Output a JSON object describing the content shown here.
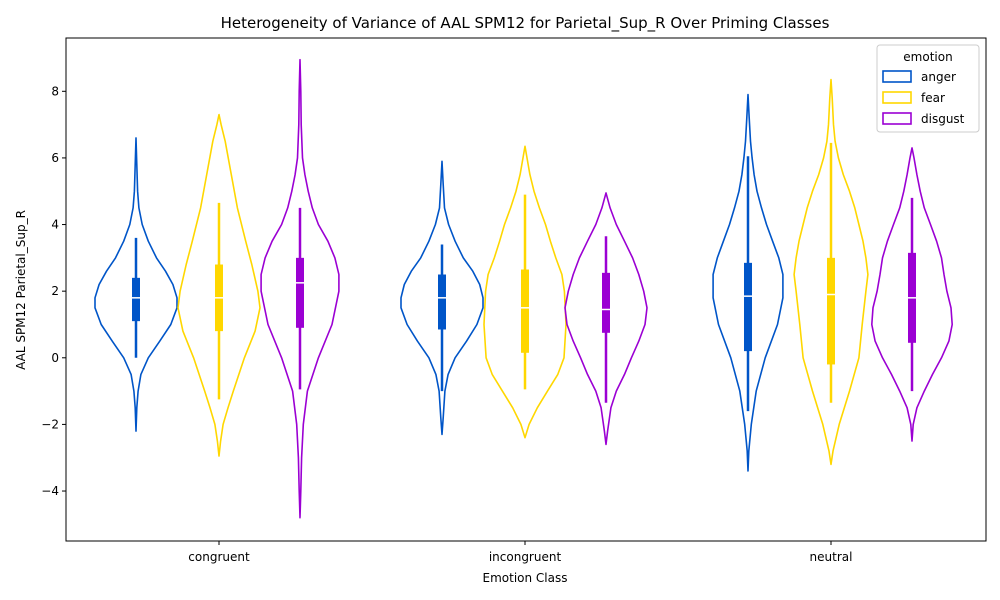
{
  "chart_data": {
    "type": "violin",
    "title": "Heterogeneity of Variance of AAL SPM12 for Parietal_Sup_R Over Priming Classes",
    "xlabel": "Emotion Class",
    "ylabel": "AAL SPM12 Parietal_Sup_R",
    "categories": [
      "congruent",
      "incongruent",
      "neutral"
    ],
    "ylim": [
      -5.5,
      9.6
    ],
    "yticks": [
      -4,
      -2,
      0,
      2,
      4,
      6,
      8
    ],
    "grid": false,
    "legend": {
      "title": "emotion",
      "placement": "top-right"
    },
    "series": [
      {
        "name": "anger",
        "color": "#0055c8",
        "violins": [
          {
            "min": -2.2,
            "max": 6.6,
            "q1": 1.1,
            "median": 1.8,
            "q3": 2.4,
            "whisker_low": 0.0,
            "whisker_high": 3.6,
            "density": [
              [
                -2.2,
                0.0
              ],
              [
                -1.5,
                0.02
              ],
              [
                -1.0,
                0.05
              ],
              [
                -0.5,
                0.12
              ],
              [
                0.0,
                0.3
              ],
              [
                0.5,
                0.58
              ],
              [
                1.0,
                0.85
              ],
              [
                1.5,
                1.0
              ],
              [
                1.8,
                1.0
              ],
              [
                2.2,
                0.9
              ],
              [
                2.6,
                0.72
              ],
              [
                3.0,
                0.5
              ],
              [
                3.5,
                0.3
              ],
              [
                4.0,
                0.15
              ],
              [
                4.5,
                0.07
              ],
              [
                5.0,
                0.04
              ],
              [
                5.8,
                0.02
              ],
              [
                6.6,
                0.0
              ]
            ]
          },
          {
            "min": -2.3,
            "max": 5.9,
            "q1": 0.85,
            "median": 1.8,
            "q3": 2.5,
            "whisker_low": -1.0,
            "whisker_high": 3.4,
            "density": [
              [
                -2.3,
                0.0
              ],
              [
                -1.8,
                0.03
              ],
              [
                -1.0,
                0.07
              ],
              [
                -0.5,
                0.15
              ],
              [
                0.0,
                0.32
              ],
              [
                0.5,
                0.6
              ],
              [
                1.0,
                0.85
              ],
              [
                1.5,
                1.0
              ],
              [
                1.8,
                1.0
              ],
              [
                2.2,
                0.92
              ],
              [
                2.6,
                0.75
              ],
              [
                3.0,
                0.52
              ],
              [
                3.5,
                0.32
              ],
              [
                4.0,
                0.16
              ],
              [
                4.5,
                0.06
              ],
              [
                5.2,
                0.03
              ],
              [
                5.9,
                0.0
              ]
            ]
          },
          {
            "min": -3.4,
            "max": 7.9,
            "q1": 0.2,
            "median": 1.85,
            "q3": 2.85,
            "whisker_low": -1.6,
            "whisker_high": 6.05,
            "density": [
              [
                -3.4,
                0.0
              ],
              [
                -2.8,
                0.02
              ],
              [
                -2.0,
                0.08
              ],
              [
                -1.0,
                0.2
              ],
              [
                0.0,
                0.42
              ],
              [
                1.0,
                0.72
              ],
              [
                1.8,
                0.85
              ],
              [
                2.5,
                0.85
              ],
              [
                3.0,
                0.75
              ],
              [
                3.5,
                0.6
              ],
              [
                4.0,
                0.45
              ],
              [
                4.5,
                0.33
              ],
              [
                5.0,
                0.22
              ],
              [
                5.5,
                0.15
              ],
              [
                6.0,
                0.1
              ],
              [
                6.5,
                0.06
              ],
              [
                7.2,
                0.03
              ],
              [
                7.9,
                0.0
              ]
            ]
          }
        ]
      },
      {
        "name": "fear",
        "color": "#ffd700",
        "violins": [
          {
            "min": -2.95,
            "max": 7.3,
            "q1": 0.8,
            "median": 1.8,
            "q3": 2.8,
            "whisker_low": -1.25,
            "whisker_high": 4.65,
            "density": [
              [
                -2.95,
                0.0
              ],
              [
                -2.5,
                0.04
              ],
              [
                -2.0,
                0.1
              ],
              [
                -1.5,
                0.22
              ],
              [
                -1.0,
                0.35
              ],
              [
                0.0,
                0.62
              ],
              [
                0.8,
                0.88
              ],
              [
                1.5,
                1.0
              ],
              [
                2.0,
                0.95
              ],
              [
                2.8,
                0.8
              ],
              [
                3.5,
                0.65
              ],
              [
                4.5,
                0.45
              ],
              [
                5.5,
                0.3
              ],
              [
                6.5,
                0.15
              ],
              [
                7.0,
                0.05
              ],
              [
                7.3,
                0.0
              ]
            ]
          },
          {
            "min": -2.4,
            "max": 6.35,
            "q1": 0.15,
            "median": 1.5,
            "q3": 2.65,
            "whisker_low": -0.95,
            "whisker_high": 4.9,
            "density": [
              [
                -2.4,
                0.0
              ],
              [
                -2.0,
                0.1
              ],
              [
                -1.5,
                0.3
              ],
              [
                -1.0,
                0.55
              ],
              [
                -0.5,
                0.8
              ],
              [
                0.0,
                0.95
              ],
              [
                1.0,
                1.0
              ],
              [
                1.5,
                0.98
              ],
              [
                2.0,
                0.96
              ],
              [
                2.5,
                0.9
              ],
              [
                3.0,
                0.75
              ],
              [
                3.5,
                0.62
              ],
              [
                4.0,
                0.5
              ],
              [
                4.5,
                0.35
              ],
              [
                5.0,
                0.22
              ],
              [
                5.5,
                0.12
              ],
              [
                6.0,
                0.05
              ],
              [
                6.35,
                0.0
              ]
            ]
          },
          {
            "min": -3.2,
            "max": 8.35,
            "q1": -0.2,
            "median": 1.9,
            "q3": 3.0,
            "whisker_low": -1.35,
            "whisker_high": 6.45,
            "density": [
              [
                -3.2,
                0.0
              ],
              [
                -2.8,
                0.05
              ],
              [
                -2.0,
                0.2
              ],
              [
                -1.0,
                0.45
              ],
              [
                0.0,
                0.68
              ],
              [
                1.0,
                0.76
              ],
              [
                2.0,
                0.85
              ],
              [
                2.5,
                0.9
              ],
              [
                3.0,
                0.85
              ],
              [
                3.5,
                0.78
              ],
              [
                4.0,
                0.68
              ],
              [
                4.5,
                0.58
              ],
              [
                5.0,
                0.45
              ],
              [
                5.5,
                0.3
              ],
              [
                6.0,
                0.18
              ],
              [
                6.5,
                0.1
              ],
              [
                7.0,
                0.06
              ],
              [
                7.8,
                0.03
              ],
              [
                8.35,
                0.0
              ]
            ]
          }
        ]
      },
      {
        "name": "disgust",
        "color": "#9b00d3",
        "violins": [
          {
            "min": -4.8,
            "max": 8.95,
            "q1": 0.9,
            "median": 2.25,
            "q3": 3.0,
            "whisker_low": -0.95,
            "whisker_high": 4.5,
            "density": [
              [
                -4.8,
                0.0
              ],
              [
                -4.0,
                0.02
              ],
              [
                -3.0,
                0.04
              ],
              [
                -2.0,
                0.08
              ],
              [
                -1.0,
                0.18
              ],
              [
                0.0,
                0.45
              ],
              [
                1.0,
                0.78
              ],
              [
                2.0,
                0.95
              ],
              [
                2.5,
                0.95
              ],
              [
                3.0,
                0.85
              ],
              [
                3.5,
                0.68
              ],
              [
                4.0,
                0.45
              ],
              [
                4.5,
                0.3
              ],
              [
                5.0,
                0.2
              ],
              [
                5.5,
                0.12
              ],
              [
                6.0,
                0.06
              ],
              [
                7.0,
                0.03
              ],
              [
                8.0,
                0.02
              ],
              [
                8.95,
                0.0
              ]
            ]
          },
          {
            "min": -2.6,
            "max": 4.95,
            "q1": 0.75,
            "median": 1.45,
            "q3": 2.55,
            "whisker_low": -1.35,
            "whisker_high": 3.65,
            "density": [
              [
                -2.6,
                0.0
              ],
              [
                -2.2,
                0.04
              ],
              [
                -1.5,
                0.12
              ],
              [
                -1.0,
                0.25
              ],
              [
                -0.5,
                0.45
              ],
              [
                0.0,
                0.62
              ],
              [
                0.5,
                0.8
              ],
              [
                1.0,
                0.95
              ],
              [
                1.5,
                1.0
              ],
              [
                2.0,
                0.92
              ],
              [
                2.5,
                0.8
              ],
              [
                3.0,
                0.65
              ],
              [
                3.5,
                0.45
              ],
              [
                4.0,
                0.25
              ],
              [
                4.5,
                0.1
              ],
              [
                4.95,
                0.0
              ]
            ]
          },
          {
            "min": -2.5,
            "max": 6.3,
            "q1": 0.45,
            "median": 1.8,
            "q3": 3.15,
            "whisker_low": -1.0,
            "whisker_high": 4.8,
            "density": [
              [
                -2.5,
                0.0
              ],
              [
                -2.0,
                0.03
              ],
              [
                -1.5,
                0.12
              ],
              [
                -1.0,
                0.3
              ],
              [
                -0.5,
                0.5
              ],
              [
                0.0,
                0.72
              ],
              [
                0.5,
                0.9
              ],
              [
                1.0,
                0.98
              ],
              [
                1.5,
                0.95
              ],
              [
                2.0,
                0.85
              ],
              [
                2.5,
                0.78
              ],
              [
                3.0,
                0.72
              ],
              [
                3.5,
                0.6
              ],
              [
                4.0,
                0.45
              ],
              [
                4.5,
                0.3
              ],
              [
                5.0,
                0.2
              ],
              [
                5.5,
                0.12
              ],
              [
                6.0,
                0.05
              ],
              [
                6.3,
                0.0
              ]
            ]
          }
        ]
      }
    ]
  }
}
